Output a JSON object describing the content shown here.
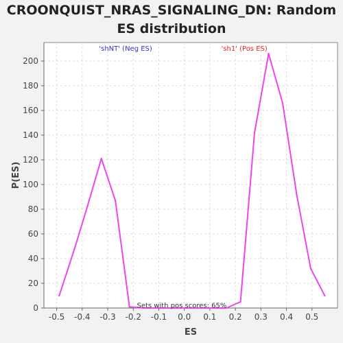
{
  "title": "CROONQUIST_NRAS_SIGNALING_DN: Random ES distribution",
  "chart_data": {
    "type": "line",
    "title": "CROONQUIST_NRAS_SIGNALING_DN: Random ES distribution",
    "xlabel": "ES",
    "ylabel": "P(ES)",
    "xlim": [
      -0.55,
      0.6
    ],
    "ylim": [
      0,
      215
    ],
    "x_ticks": [
      -0.5,
      -0.4,
      -0.3,
      -0.2,
      -0.1,
      0.0,
      0.1,
      0.2,
      0.3,
      0.4,
      0.5
    ],
    "x_tick_labels": [
      "-0.5",
      "-0.4",
      "-0.3",
      "-0.2",
      "-0.1",
      "0.0",
      "0.1",
      "0.2",
      "0.3",
      "0.4",
      "0.5"
    ],
    "y_ticks": [
      0,
      20,
      40,
      60,
      80,
      100,
      120,
      140,
      160,
      180,
      200
    ],
    "grid": true,
    "line_color": "#ee44ee",
    "series": [
      {
        "x": [
          -0.49,
          -0.43,
          -0.38,
          -0.325,
          -0.27,
          -0.215,
          -0.16,
          -0.11,
          -0.055,
          0.0,
          0.055,
          0.11,
          0.165,
          0.22,
          0.275,
          0.33,
          0.385,
          0.44,
          0.495,
          0.55
        ],
        "y": [
          10,
          48,
          82,
          121,
          87,
          1,
          0,
          0,
          0,
          0,
          0,
          0,
          0,
          5,
          142,
          206,
          166,
          92,
          32,
          10
        ]
      }
    ],
    "annotations": [
      {
        "text": "'shNT' (Neg ES)",
        "color": "#3333cc",
        "x": -0.23,
        "y": 210
      },
      {
        "text": "'sh1' (Pos ES)",
        "color": "#ee2222",
        "x": 0.235,
        "y": 210
      },
      {
        "text": "Sets with pos scores: 65%",
        "color": "#333333",
        "x": -0.01,
        "y": 2
      }
    ]
  }
}
